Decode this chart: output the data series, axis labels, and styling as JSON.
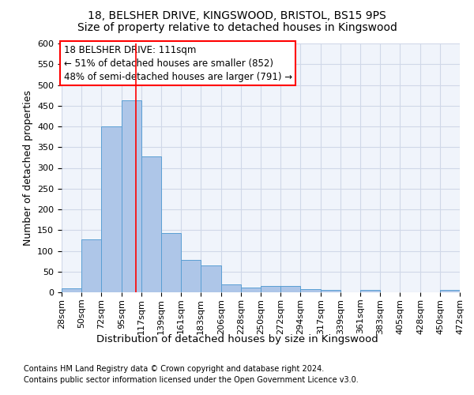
{
  "title1": "18, BELSHER DRIVE, KINGSWOOD, BRISTOL, BS15 9PS",
  "title2": "Size of property relative to detached houses in Kingswood",
  "xlabel": "Distribution of detached houses by size in Kingswood",
  "ylabel": "Number of detached properties",
  "footnote1": "Contains HM Land Registry data © Crown copyright and database right 2024.",
  "footnote2": "Contains public sector information licensed under the Open Government Licence v3.0.",
  "annotation_line1": "18 BELSHER DRIVE: 111sqm",
  "annotation_line2": "← 51% of detached houses are smaller (852)",
  "annotation_line3": "48% of semi-detached houses are larger (791) →",
  "property_size": 111,
  "bar_edges": [
    28,
    50,
    72,
    95,
    117,
    139,
    161,
    183,
    206,
    228,
    250,
    272,
    294,
    317,
    339,
    361,
    383,
    405,
    428,
    450,
    472
  ],
  "bar_heights": [
    10,
    128,
    400,
    462,
    328,
    143,
    79,
    65,
    19,
    12,
    15,
    15,
    7,
    5,
    0,
    5,
    0,
    0,
    0,
    5
  ],
  "bar_color": "#aec6e8",
  "bar_edgecolor": "#5a9fd4",
  "grid_color": "#d0d8e8",
  "vline_color": "red",
  "vline_x": 111,
  "ylim_max": 600,
  "yticks": [
    0,
    50,
    100,
    150,
    200,
    250,
    300,
    350,
    400,
    450,
    500,
    550,
    600
  ],
  "bg_color": "#f0f4fb",
  "annotation_box_color": "white",
  "annotation_box_edgecolor": "red",
  "title1_fontsize": 10,
  "title2_fontsize": 10,
  "xlabel_fontsize": 9.5,
  "ylabel_fontsize": 9,
  "tick_fontsize": 8,
  "footnote_fontsize": 7,
  "annotation_fontsize": 8.5
}
